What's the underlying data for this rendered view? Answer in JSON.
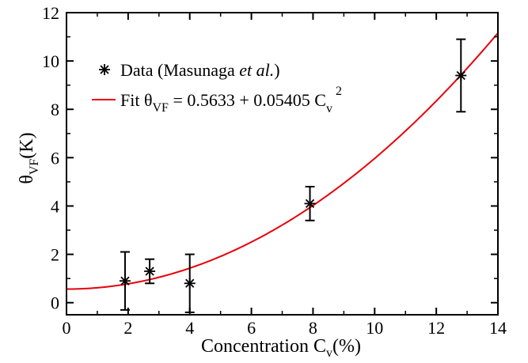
{
  "chart_data": {
    "type": "scatter",
    "xlabel": {
      "main": "Concentration C",
      "sub": "v",
      "suffix": "(%)"
    },
    "ylabel": {
      "main": "θ",
      "sub": "VF",
      "suffix": "(K)"
    },
    "xlim": [
      0,
      14
    ],
    "ylim": [
      -0.5,
      12
    ],
    "xticks": [
      0,
      2,
      4,
      6,
      8,
      10,
      12,
      14
    ],
    "yticks": [
      0,
      2,
      4,
      6,
      8,
      10,
      12
    ],
    "grid": false,
    "legend_position": "top-left",
    "series": [
      {
        "name": "Data (Masunaga et al.)",
        "legend": {
          "prefix": "Data (Masunaga ",
          "italic": "et al.",
          "suffix": ")"
        },
        "kind": "points_with_errorbars",
        "marker": "asterisk",
        "color": "#000000",
        "x": [
          1.9,
          2.7,
          4.0,
          7.9,
          12.8
        ],
        "y": [
          0.9,
          1.3,
          0.8,
          4.1,
          9.4
        ],
        "yerr": [
          1.2,
          0.5,
          1.2,
          0.7,
          1.5
        ]
      },
      {
        "name": "Fit θVF = 0.5633 + 0.05405 Cv2",
        "legend": {
          "a": "Fit θ",
          "a_sub": "VF",
          "b": " = 0.5633 + 0.05405 C",
          "b_sub": "v",
          "sup": "2"
        },
        "kind": "line",
        "color": "#e8000b",
        "a0": 0.5633,
        "a2": 0.05405
      }
    ]
  }
}
